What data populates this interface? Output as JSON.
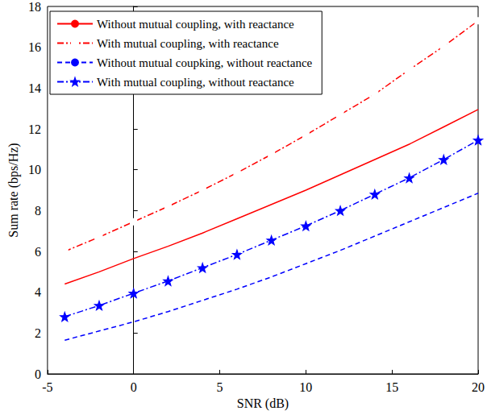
{
  "chart_data": {
    "type": "line",
    "x_label": "SNR (dB)",
    "y_label": "Sum rate (bps/Hz)",
    "x": [
      -4,
      -2,
      0,
      2,
      4,
      6,
      8,
      10,
      12,
      14,
      16,
      18,
      20
    ],
    "series": [
      {
        "name": "Without mutual coupling, with reactance",
        "color": "#ff0000",
        "marker": "none",
        "line_style": "solid",
        "values": [
          4.4,
          5.0,
          5.65,
          6.25,
          6.9,
          7.6,
          8.3,
          9.0,
          9.75,
          10.5,
          11.25,
          12.1,
          12.95
        ]
      },
      {
        "name": "With mutual coupling, with reactance",
        "color": "#ff0000",
        "marker": "square",
        "line_style": "dashdot",
        "values": [
          6.0,
          6.7,
          7.45,
          8.2,
          9.0,
          9.85,
          10.75,
          11.7,
          12.7,
          13.7,
          14.9,
          16.05,
          17.3
        ]
      },
      {
        "name": "Without mutual coupking, without reactance",
        "color": "#0000ff",
        "marker": "none",
        "line_style": "dashed",
        "values": [
          1.65,
          2.1,
          2.55,
          3.05,
          3.6,
          4.15,
          4.75,
          5.4,
          6.05,
          6.75,
          7.45,
          8.15,
          8.85
        ]
      },
      {
        "name": "With mutual coupling, without reactance",
        "color": "#0000ff",
        "marker": "star",
        "line_style": "dashdot",
        "values": [
          2.8,
          3.35,
          3.95,
          4.55,
          5.2,
          5.85,
          6.55,
          7.25,
          8.0,
          8.8,
          9.6,
          10.5,
          11.45
        ]
      }
    ],
    "xlim": [
      -5,
      20
    ],
    "xticks": [
      -5,
      0,
      5,
      10,
      15,
      20
    ],
    "ylim": [
      0,
      18
    ],
    "yticks": [
      0,
      2,
      4,
      6,
      8,
      10,
      12,
      14,
      16,
      18
    ],
    "grid": false,
    "legend": "upper left"
  }
}
